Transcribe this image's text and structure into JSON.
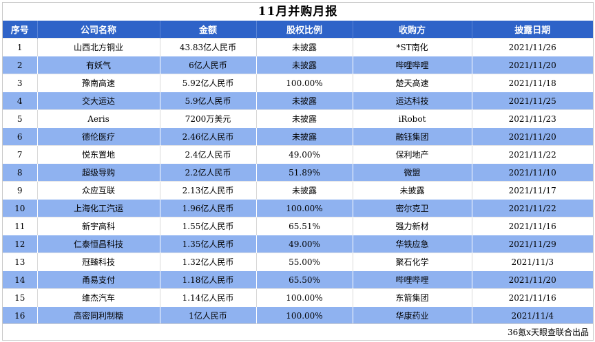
{
  "title": "11月并购月报",
  "headers": [
    "序号",
    "公司名称",
    "金额",
    "股权比例",
    "收购方",
    "披露日期"
  ],
  "rows": [
    {
      "no": "1",
      "company": "山西北方铜业",
      "amount": "43.83亿人民币",
      "equity": "未披露",
      "acquirer": "*ST南化",
      "date": "2021/11/26"
    },
    {
      "no": "2",
      "company": "有妖气",
      "amount": "6亿人民币",
      "equity": "未披露",
      "acquirer": "哔哩哔哩",
      "date": "2021/11/20"
    },
    {
      "no": "3",
      "company": "豫南高速",
      "amount": "5.92亿人民币",
      "equity": "100.00%",
      "acquirer": "楚天高速",
      "date": "2021/11/18"
    },
    {
      "no": "4",
      "company": "交大运达",
      "amount": "5.9亿人民币",
      "equity": "未披露",
      "acquirer": "运达科技",
      "date": "2021/11/25"
    },
    {
      "no": "5",
      "company": "Aeris",
      "amount": "7200万美元",
      "equity": "未披露",
      "acquirer": "iRobot",
      "date": "2021/11/23"
    },
    {
      "no": "6",
      "company": "德伦医疗",
      "amount": "2.46亿人民币",
      "equity": "未披露",
      "acquirer": "融钰集团",
      "date": "2021/11/20"
    },
    {
      "no": "7",
      "company": "悦东置地",
      "amount": "2.4亿人民币",
      "equity": "49.00%",
      "acquirer": "保利地产",
      "date": "2021/11/22"
    },
    {
      "no": "8",
      "company": "超级导购",
      "amount": "2.2亿人民币",
      "equity": "51.89%",
      "acquirer": "微盟",
      "date": "2021/11/10"
    },
    {
      "no": "9",
      "company": "众应互联",
      "amount": "2.13亿人民币",
      "equity": "未披露",
      "acquirer": "未披露",
      "date": "2021/11/17"
    },
    {
      "no": "10",
      "company": "上海化工汽运",
      "amount": "1.96亿人民币",
      "equity": "100.00%",
      "acquirer": "密尔克卫",
      "date": "2021/11/22"
    },
    {
      "no": "11",
      "company": "新宇高科",
      "amount": "1.55亿人民币",
      "equity": "65.51%",
      "acquirer": "强力新材",
      "date": "2021/11/16"
    },
    {
      "no": "12",
      "company": "仁泰恒昌科技",
      "amount": "1.35亿人民币",
      "equity": "49.00%",
      "acquirer": "华铁应急",
      "date": "2021/11/29"
    },
    {
      "no": "13",
      "company": "冠臻科技",
      "amount": "1.32亿人民币",
      "equity": "55.00%",
      "acquirer": "聚石化学",
      "date": "2021/11/3"
    },
    {
      "no": "14",
      "company": "甬易支付",
      "amount": "1.18亿人民币",
      "equity": "65.50%",
      "acquirer": "哔哩哔哩",
      "date": "2021/11/20"
    },
    {
      "no": "15",
      "company": "维杰汽车",
      "amount": "1.14亿人民币",
      "equity": "100.00%",
      "acquirer": "东箭集团",
      "date": "2021/11/16"
    },
    {
      "no": "16",
      "company": "高密同利制糖",
      "amount": "1亿人民币",
      "equity": "100.00%",
      "acquirer": "华康药业",
      "date": "2021/11/4"
    }
  ],
  "footer": "36氪x天眼查联合出品",
  "colors": {
    "header_bg": "#2e63c8",
    "header_text": "#ffffff",
    "row_alt_bg": "#8fb2f0",
    "row_bg": "#ffffff"
  }
}
